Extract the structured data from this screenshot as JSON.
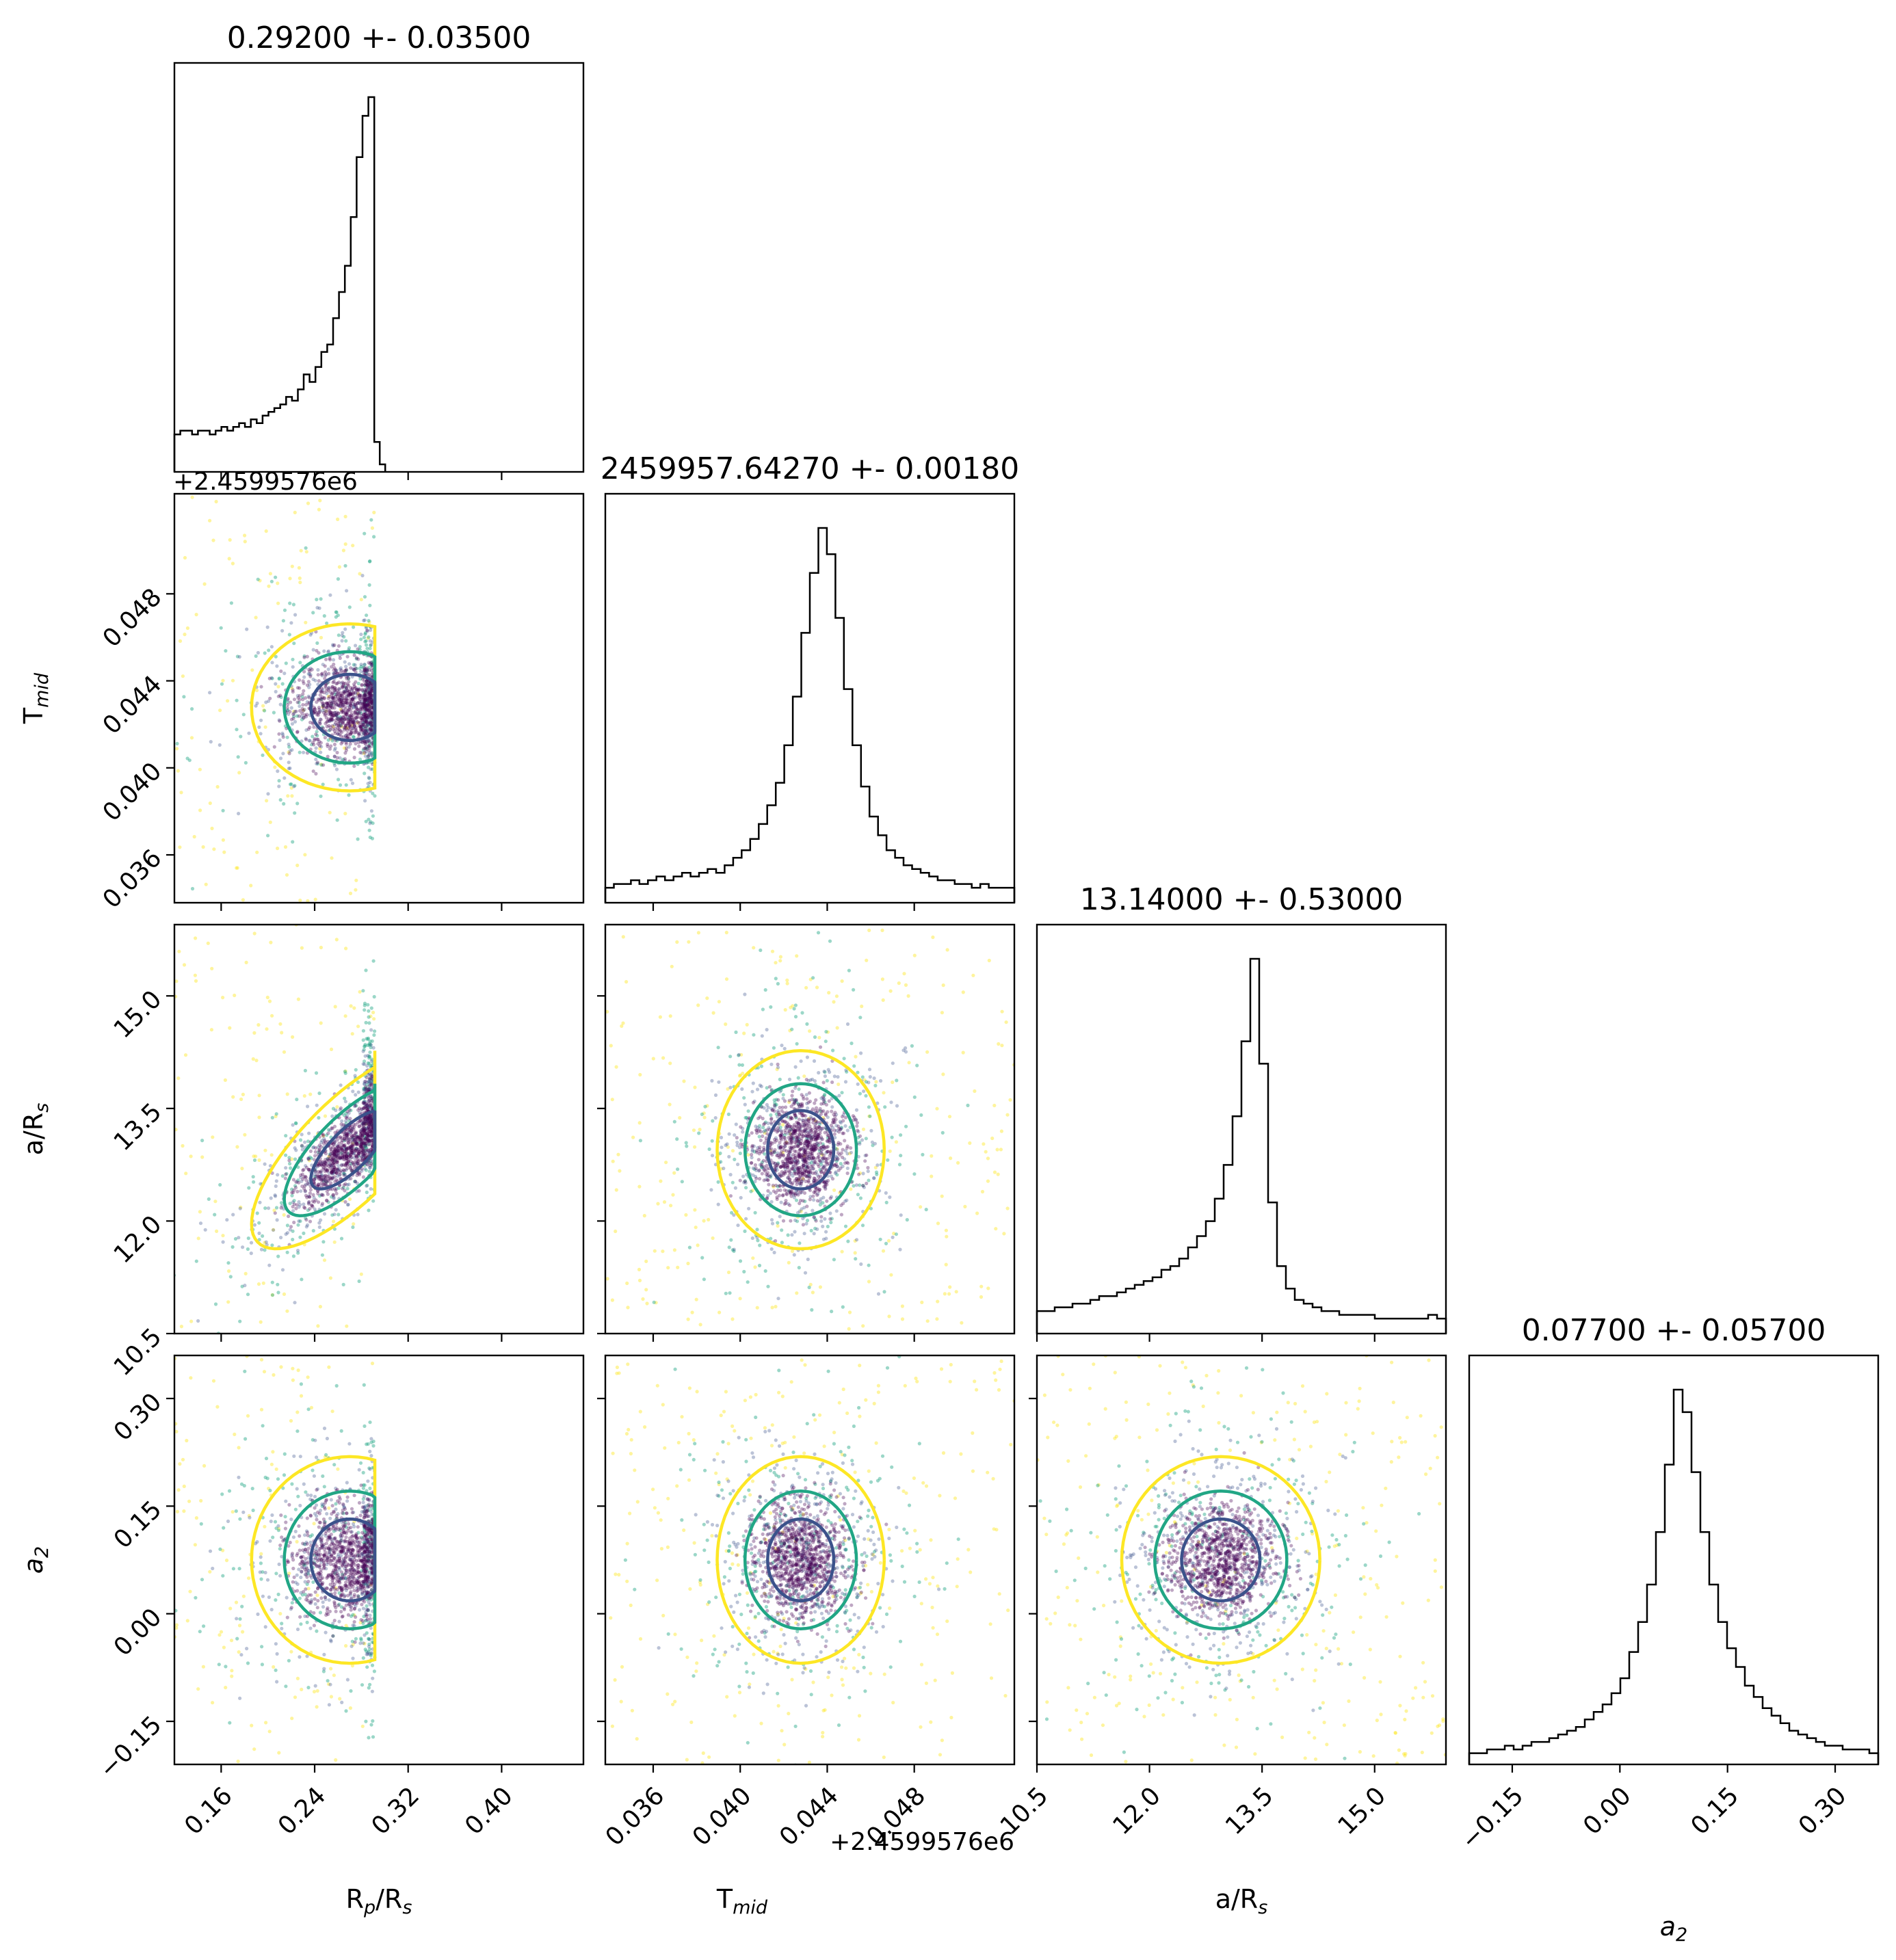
{
  "chart_data": {
    "type": "corner",
    "parameters": [
      {
        "key": "rp",
        "label_main": "R",
        "label_sub": "p",
        "label_rest": "/R",
        "label_sub2": "s"
      },
      {
        "key": "tmid",
        "label_main": "T",
        "label_sub": "mid",
        "label_rest": "",
        "label_sub2": ""
      },
      {
        "key": "ars",
        "label_main": "a/R",
        "label_sub": "s",
        "label_rest": "",
        "label_sub2": ""
      },
      {
        "key": "a2",
        "label_main": "a",
        "label_sub": "2",
        "label_rest": "",
        "label_sub2": "",
        "italic": true
      }
    ],
    "titles": [
      "0.29200 +- 0.03500",
      "2459957.64270 +- 0.00180",
      "13.14000 +- 0.53000",
      "0.07700 +- 0.05700"
    ],
    "offset_label": "+2.4599576e6",
    "ranges": [
      [
        0.12,
        0.47
      ],
      [
        0.0338,
        0.0526
      ],
      [
        10.5,
        15.95
      ],
      [
        -0.21,
        0.36
      ]
    ],
    "ticks": {
      "rp": {
        "values": [
          0.16,
          0.24,
          0.32,
          0.4
        ],
        "labels": [
          "0.16",
          "0.24",
          "0.32",
          "0.40"
        ]
      },
      "tmid": {
        "values": [
          0.036,
          0.04,
          0.044,
          0.048
        ],
        "labels": [
          "0.036",
          "0.040",
          "0.044",
          "0.048"
        ]
      },
      "ars": {
        "values": [
          10.5,
          12.0,
          13.5,
          15.0
        ],
        "labels": [
          "10.5",
          "12.0",
          "13.5",
          "15.0"
        ]
      },
      "a2": {
        "values": [
          -0.15,
          0.0,
          0.15,
          0.3
        ],
        "labels": [
          "−0.15",
          "0.00",
          "0.15",
          "0.30"
        ]
      }
    },
    "hist": {
      "rp": {
        "x0": 0.12,
        "x1": 0.291,
        "density": [
          0.1,
          0.11,
          0.11,
          0.1,
          0.11,
          0.11,
          0.1,
          0.11,
          0.12,
          0.11,
          0.12,
          0.13,
          0.12,
          0.14,
          0.13,
          0.15,
          0.16,
          0.17,
          0.18,
          0.2,
          0.19,
          0.22,
          0.26,
          0.24,
          0.28,
          0.32,
          0.34,
          0.41,
          0.48,
          0.55,
          0.68,
          0.84,
          0.95,
          1.0
        ],
        "tail": [
          0.08,
          0.02
        ]
      },
      "tmid": {
        "x0": 0.0338,
        "x1": 0.0526,
        "density": [
          0.04,
          0.05,
          0.05,
          0.06,
          0.05,
          0.06,
          0.07,
          0.06,
          0.07,
          0.08,
          0.07,
          0.08,
          0.09,
          0.08,
          0.1,
          0.12,
          0.14,
          0.17,
          0.21,
          0.26,
          0.32,
          0.42,
          0.55,
          0.72,
          0.88,
          1.0,
          0.93,
          0.76,
          0.57,
          0.42,
          0.31,
          0.23,
          0.18,
          0.14,
          0.12,
          0.1,
          0.09,
          0.08,
          0.07,
          0.06,
          0.06,
          0.05,
          0.05,
          0.04,
          0.05,
          0.04,
          0.04,
          0.04
        ]
      },
      "ars": {
        "x0": 10.5,
        "x1": 15.95,
        "density": [
          0.06,
          0.06,
          0.07,
          0.07,
          0.08,
          0.08,
          0.09,
          0.1,
          0.1,
          0.11,
          0.12,
          0.13,
          0.14,
          0.15,
          0.17,
          0.18,
          0.2,
          0.23,
          0.26,
          0.3,
          0.36,
          0.45,
          0.58,
          0.78,
          1.0,
          0.72,
          0.35,
          0.18,
          0.12,
          0.09,
          0.08,
          0.07,
          0.06,
          0.06,
          0.05,
          0.05,
          0.05,
          0.05,
          0.04,
          0.04,
          0.04,
          0.04,
          0.04,
          0.04,
          0.05,
          0.04
        ]
      },
      "a2": {
        "x0": -0.21,
        "x1": 0.36,
        "density": [
          0.03,
          0.03,
          0.04,
          0.04,
          0.05,
          0.04,
          0.05,
          0.06,
          0.06,
          0.07,
          0.08,
          0.09,
          0.1,
          0.12,
          0.14,
          0.16,
          0.19,
          0.23,
          0.3,
          0.38,
          0.48,
          0.62,
          0.8,
          1.0,
          0.94,
          0.78,
          0.62,
          0.48,
          0.38,
          0.31,
          0.26,
          0.21,
          0.18,
          0.15,
          0.13,
          0.11,
          0.09,
          0.08,
          0.07,
          0.06,
          0.05,
          0.05,
          0.04,
          0.04,
          0.04,
          0.03
        ]
      }
    },
    "means": {
      "rp": 0.27,
      "tmid": 0.04278,
      "ars": 12.95,
      "a2": 0.075
    },
    "sigmas": {
      "rp": 0.035,
      "tmid": 0.0016,
      "ars": 0.55,
      "a2": 0.06
    },
    "rp_max": 0.2915,
    "level_colors": [
      "#fde725",
      "#21a685",
      "#3b528b",
      "#440154"
    ],
    "hist_color": "#000000"
  }
}
